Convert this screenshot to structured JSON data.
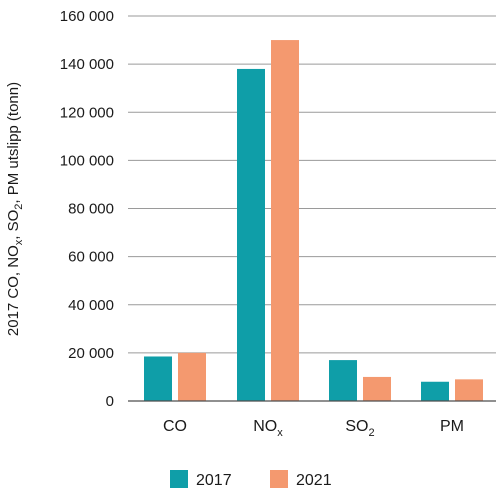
{
  "chart_data": {
    "type": "bar",
    "title": "",
    "ylabel_parts": [
      "2017 CO, NO",
      "x",
      ", SO",
      "2",
      ", PM utslipp (tonn)"
    ],
    "ylim": [
      0,
      160000
    ],
    "yticks": [
      0,
      20000,
      40000,
      60000,
      80000,
      100000,
      120000,
      140000,
      160000
    ],
    "ytick_labels": [
      "0",
      "20 000",
      "40 000",
      "60 000",
      "80 000",
      "100 000",
      "120 000",
      "140 000",
      "160 000"
    ],
    "grid": true,
    "legend_position": "bottom",
    "categories": [
      {
        "base": "CO",
        "sub": ""
      },
      {
        "base": "NO",
        "sub": "x"
      },
      {
        "base": "SO",
        "sub": "2"
      },
      {
        "base": "PM",
        "sub": ""
      }
    ],
    "series": [
      {
        "name": "2017",
        "color": "#0f9ea8",
        "values": [
          18500,
          138000,
          17000,
          8000
        ]
      },
      {
        "name": "2021",
        "color": "#f4996f",
        "values": [
          20000,
          150000,
          10000,
          9000
        ]
      }
    ]
  }
}
